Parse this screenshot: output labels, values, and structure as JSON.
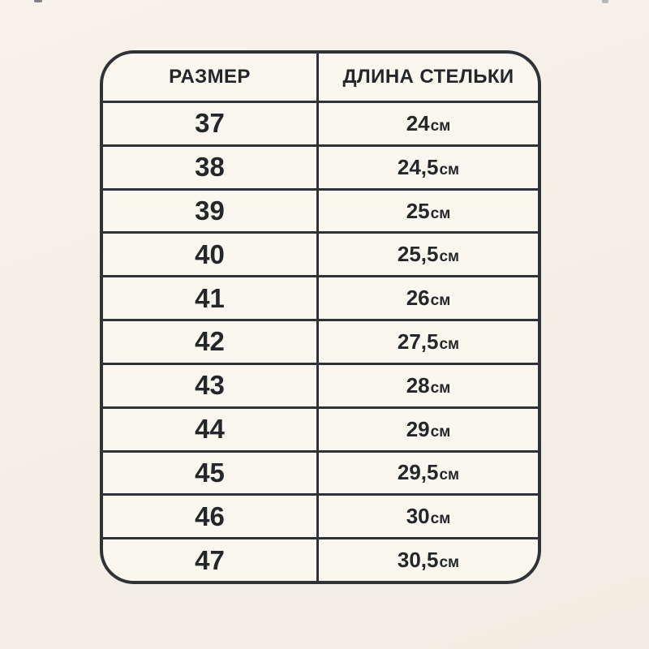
{
  "page": {
    "background_color": "#f4efe5",
    "card_background_color": "#faf7ef",
    "border_color": "#2f3337",
    "text_color": "#24272a"
  },
  "chart_data": {
    "type": "table",
    "title": "",
    "columns": [
      {
        "label": "РАЗМЕР"
      },
      {
        "label": "ДЛИНА СТЕЛЬКИ"
      }
    ],
    "rows": [
      {
        "size": "37",
        "length_value": "24",
        "length_unit": "см"
      },
      {
        "size": "38",
        "length_value": "24,5",
        "length_unit": "см"
      },
      {
        "size": "39",
        "length_value": "25",
        "length_unit": "см"
      },
      {
        "size": "40",
        "length_value": "25,5",
        "length_unit": "см"
      },
      {
        "size": "41",
        "length_value": "26",
        "length_unit": "см"
      },
      {
        "size": "42",
        "length_value": "27,5",
        "length_unit": "см"
      },
      {
        "size": "43",
        "length_value": "28",
        "length_unit": "см"
      },
      {
        "size": "44",
        "length_value": "29",
        "length_unit": "см"
      },
      {
        "size": "45",
        "length_value": "29,5",
        "length_unit": "см"
      },
      {
        "size": "46",
        "length_value": "30",
        "length_unit": "см"
      },
      {
        "size": "47",
        "length_value": "30,5",
        "length_unit": "см"
      }
    ]
  }
}
